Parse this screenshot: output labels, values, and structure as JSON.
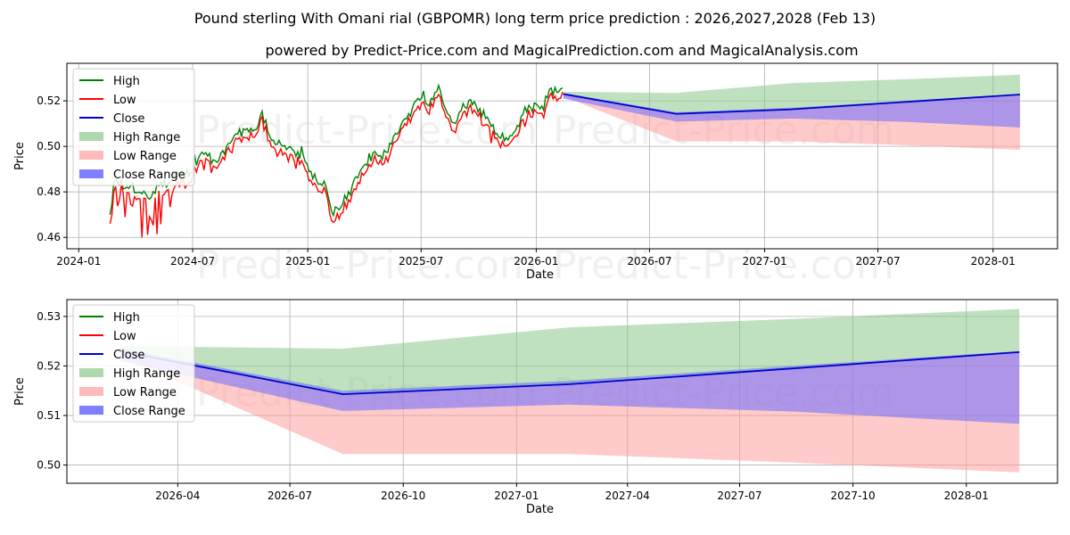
{
  "title": "Pound sterling With Omani rial (GBPOMR) long term price prediction : 2026,2027,2028 (Feb 13)",
  "subtitle": "powered by Predict-Price.com and MagicalPrediction.com and MagicalAnalysis.com",
  "watermark": "Predict-Price.com",
  "colors": {
    "high": "#008000",
    "low": "#ff0000",
    "close": "#0000cc",
    "high_range": "#8ac98a",
    "low_range": "#ff9e9e",
    "close_range": "#6a6aff",
    "grid": "#b0b0b0"
  },
  "legend": {
    "high": "High",
    "low": "Low",
    "close": "Close",
    "high_range": "High Range",
    "low_range": "Low Range",
    "close_range": "Close Range"
  },
  "chart_data": [
    {
      "type": "line",
      "xlabel": "Date",
      "ylabel": "Price",
      "xlim": [
        "2023-12-13",
        "2028-04-13"
      ],
      "ylim": [
        0.455,
        0.5365
      ],
      "xticks": [
        {
          "date": "2024-01-01",
          "label": "2024-01"
        },
        {
          "date": "2024-07-01",
          "label": "2024-07"
        },
        {
          "date": "2025-01-01",
          "label": "2025-01"
        },
        {
          "date": "2025-07-01",
          "label": "2025-07"
        },
        {
          "date": "2026-01-01",
          "label": "2026-01"
        },
        {
          "date": "2026-07-01",
          "label": "2026-07"
        },
        {
          "date": "2027-01-01",
          "label": "2027-01"
        },
        {
          "date": "2027-07-01",
          "label": "2027-07"
        },
        {
          "date": "2028-01-01",
          "label": "2028-01"
        }
      ],
      "yticks": [
        {
          "value": 0.46,
          "label": "0.46"
        },
        {
          "value": 0.48,
          "label": "0.48"
        },
        {
          "value": 0.5,
          "label": "0.50"
        },
        {
          "value": 0.52,
          "label": "0.52"
        }
      ],
      "history_anchors": [
        [
          "2024-02-20",
          0.469
        ],
        [
          "2024-02-28",
          0.484
        ],
        [
          "2024-03-10",
          0.482
        ],
        [
          "2024-03-25",
          0.481
        ],
        [
          "2024-04-10",
          0.478
        ],
        [
          "2024-04-25",
          0.476
        ],
        [
          "2024-05-10",
          0.4805
        ],
        [
          "2024-05-25",
          0.4845
        ],
        [
          "2024-06-10",
          0.4875
        ],
        [
          "2024-06-25",
          0.4865
        ],
        [
          "2024-07-10",
          0.4935
        ],
        [
          "2024-07-20",
          0.4965
        ],
        [
          "2024-08-05",
          0.4905
        ],
        [
          "2024-08-20",
          0.4965
        ],
        [
          "2024-09-05",
          0.5035
        ],
        [
          "2024-09-20",
          0.5045
        ],
        [
          "2024-10-05",
          0.5055
        ],
        [
          "2024-10-20",
          0.5125
        ],
        [
          "2024-11-05",
          0.5015
        ],
        [
          "2024-11-20",
          0.4995
        ],
        [
          "2024-12-05",
          0.4985
        ],
        [
          "2024-12-20",
          0.4945
        ],
        [
          "2025-01-05",
          0.4875
        ],
        [
          "2025-01-15",
          0.4835
        ],
        [
          "2025-01-30",
          0.4825
        ],
        [
          "2025-02-10",
          0.4685
        ],
        [
          "2025-02-25",
          0.4735
        ],
        [
          "2025-03-10",
          0.479
        ],
        [
          "2025-03-25",
          0.4865
        ],
        [
          "2025-04-10",
          0.4935
        ],
        [
          "2025-04-20",
          0.4955
        ],
        [
          "2025-05-05",
          0.4945
        ],
        [
          "2025-05-20",
          0.5045
        ],
        [
          "2025-06-05",
          0.5105
        ],
        [
          "2025-06-20",
          0.516
        ],
        [
          "2025-07-01",
          0.5205
        ],
        [
          "2025-07-15",
          0.5175
        ],
        [
          "2025-07-30",
          0.5235
        ],
        [
          "2025-08-10",
          0.513
        ],
        [
          "2025-08-25",
          0.5065
        ],
        [
          "2025-09-05",
          0.5155
        ],
        [
          "2025-09-20",
          0.518
        ],
        [
          "2025-10-05",
          0.5135
        ],
        [
          "2025-10-20",
          0.5095
        ],
        [
          "2025-11-01",
          0.5035
        ],
        [
          "2025-11-15",
          0.5025
        ],
        [
          "2025-12-01",
          0.506
        ],
        [
          "2025-12-15",
          0.5145
        ],
        [
          "2026-01-01",
          0.5165
        ],
        [
          "2026-01-12",
          0.515
        ],
        [
          "2026-01-22",
          0.524
        ],
        [
          "2026-02-05",
          0.5215
        ],
        [
          "2026-02-13",
          0.523
        ]
      ],
      "forecast": [
        {
          "date": "2026-02-13",
          "high": 0.524,
          "low": 0.522,
          "close": 0.523,
          "close_lo": 0.521,
          "close_hi": 0.5235
        },
        {
          "date": "2026-08-13",
          "high": 0.5235,
          "low": 0.5022,
          "close": 0.5143,
          "close_lo": 0.5109,
          "close_hi": 0.515
        },
        {
          "date": "2027-02-13",
          "high": 0.5278,
          "low": 0.5022,
          "close": 0.5163,
          "close_lo": 0.5122,
          "close_hi": 0.517
        },
        {
          "date": "2027-08-13",
          "high": 0.5295,
          "low": 0.5005,
          "close": 0.5195,
          "close_lo": 0.5108,
          "close_hi": 0.52
        },
        {
          "date": "2028-02-13",
          "high": 0.5315,
          "low": 0.4985,
          "close": 0.5228,
          "close_lo": 0.5083,
          "close_hi": 0.523
        }
      ]
    },
    {
      "type": "line",
      "xlabel": "Date",
      "ylabel": "Price",
      "xlim": [
        "2026-01-01",
        "2028-03-15"
      ],
      "ylim": [
        0.4963,
        0.5334
      ],
      "xticks": [
        {
          "date": "2026-04-01",
          "label": "2026-04"
        },
        {
          "date": "2026-07-01",
          "label": "2026-07"
        },
        {
          "date": "2026-10-01",
          "label": "2026-10"
        },
        {
          "date": "2027-01-01",
          "label": "2027-01"
        },
        {
          "date": "2027-04-01",
          "label": "2027-04"
        },
        {
          "date": "2027-07-01",
          "label": "2027-07"
        },
        {
          "date": "2027-10-01",
          "label": "2027-10"
        },
        {
          "date": "2028-01-01",
          "label": "2028-01"
        }
      ],
      "yticks": [
        {
          "value": 0.5,
          "label": "0.50"
        },
        {
          "value": 0.51,
          "label": "0.51"
        },
        {
          "value": 0.52,
          "label": "0.52"
        },
        {
          "value": 0.53,
          "label": "0.53"
        }
      ]
    }
  ]
}
